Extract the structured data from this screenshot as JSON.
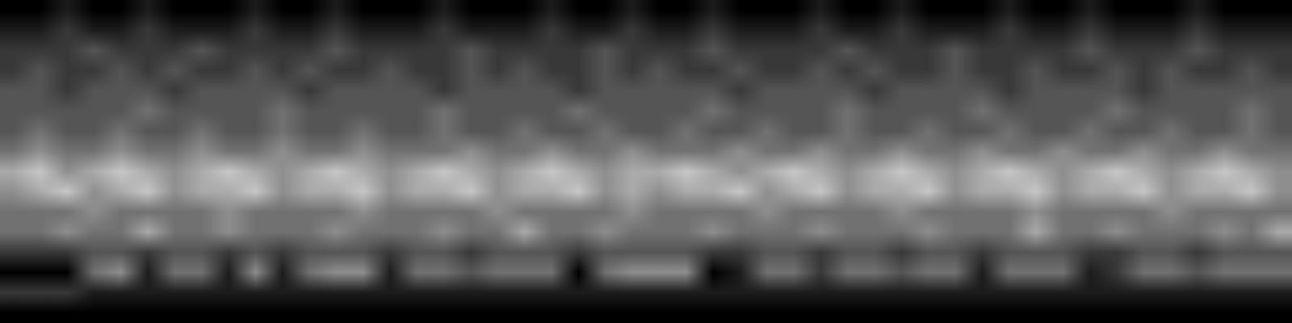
{
  "chart_data": {
    "type": "heatmap",
    "tick_labels": false,
    "color_range": [
      0,
      9
    ],
    "cells": [
      [
        0,
        0,
        1,
        0,
        0,
        1,
        0,
        0,
        0,
        1,
        0,
        0,
        1,
        0,
        0,
        0,
        1,
        0,
        0,
        0,
        1,
        0,
        0,
        1,
        0,
        0,
        1,
        0,
        0,
        0,
        1,
        0,
        0,
        1,
        0,
        0,
        0,
        1,
        0,
        0,
        1,
        0,
        0,
        0,
        1,
        0,
        0,
        0
      ],
      [
        1,
        1,
        2,
        1,
        1,
        2,
        1,
        1,
        1,
        2,
        1,
        1,
        2,
        1,
        1,
        1,
        2,
        1,
        1,
        1,
        2,
        1,
        1,
        2,
        1,
        1,
        2,
        1,
        1,
        1,
        2,
        1,
        1,
        2,
        1,
        1,
        1,
        2,
        1,
        1,
        2,
        1,
        1,
        1,
        2,
        1,
        1,
        1
      ],
      [
        2,
        2,
        2,
        3,
        2,
        2,
        2,
        3,
        2,
        2,
        2,
        2,
        3,
        2,
        2,
        2,
        2,
        3,
        2,
        2,
        2,
        2,
        3,
        2,
        2,
        2,
        3,
        2,
        2,
        2,
        2,
        3,
        2,
        2,
        2,
        3,
        2,
        2,
        2,
        2,
        3,
        2,
        2,
        2,
        3,
        2,
        2,
        2
      ],
      [
        2,
        3,
        2,
        2,
        3,
        2,
        3,
        2,
        2,
        3,
        2,
        3,
        2,
        2,
        3,
        2,
        2,
        3,
        2,
        3,
        2,
        2,
        3,
        2,
        3,
        2,
        2,
        3,
        2,
        2,
        3,
        2,
        3,
        2,
        2,
        3,
        2,
        2,
        3,
        2,
        2,
        3,
        2,
        3,
        2,
        2,
        3,
        2
      ],
      [
        3,
        3,
        2,
        3,
        3,
        3,
        2,
        3,
        3,
        3,
        3,
        2,
        3,
        3,
        3,
        3,
        2,
        3,
        3,
        3,
        3,
        2,
        3,
        3,
        3,
        3,
        3,
        2,
        3,
        3,
        3,
        3,
        2,
        3,
        3,
        3,
        3,
        2,
        3,
        3,
        3,
        3,
        2,
        3,
        3,
        3,
        3,
        3
      ],
      [
        3,
        3,
        3,
        3,
        3,
        4,
        3,
        3,
        3,
        3,
        4,
        3,
        3,
        3,
        3,
        3,
        4,
        3,
        3,
        3,
        3,
        4,
        3,
        3,
        3,
        3,
        4,
        3,
        3,
        3,
        3,
        4,
        3,
        3,
        3,
        3,
        4,
        3,
        3,
        3,
        3,
        4,
        3,
        3,
        3,
        3,
        4,
        3
      ],
      [
        3,
        4,
        3,
        3,
        4,
        3,
        3,
        4,
        3,
        3,
        4,
        3,
        3,
        4,
        3,
        3,
        4,
        3,
        3,
        4,
        3,
        3,
        4,
        3,
        3,
        4,
        3,
        3,
        4,
        3,
        3,
        4,
        3,
        3,
        4,
        3,
        3,
        4,
        3,
        3,
        4,
        3,
        3,
        4,
        3,
        3,
        4,
        3
      ],
      [
        4,
        5,
        4,
        4,
        5,
        4,
        4,
        5,
        4,
        4,
        5,
        4,
        4,
        5,
        4,
        4,
        4,
        5,
        4,
        4,
        5,
        4,
        4,
        5,
        4,
        4,
        4,
        5,
        4,
        4,
        5,
        4,
        4,
        5,
        4,
        4,
        5,
        4,
        4,
        5,
        4,
        4,
        5,
        4,
        4,
        5,
        4,
        4
      ],
      [
        6,
        7,
        5,
        6,
        7,
        6,
        5,
        6,
        7,
        6,
        5,
        6,
        7,
        6,
        5,
        6,
        7,
        6,
        5,
        6,
        7,
        6,
        5,
        6,
        6,
        7,
        6,
        5,
        6,
        7,
        6,
        5,
        6,
        7,
        6,
        5,
        6,
        7,
        6,
        5,
        6,
        7,
        6,
        5,
        6,
        7,
        6,
        5
      ],
      [
        5,
        6,
        7,
        5,
        6,
        7,
        5,
        6,
        6,
        7,
        5,
        6,
        6,
        7,
        5,
        6,
        6,
        7,
        5,
        6,
        6,
        7,
        5,
        6,
        5,
        6,
        6,
        7,
        5,
        6,
        7,
        5,
        6,
        6,
        7,
        5,
        6,
        6,
        7,
        5,
        6,
        6,
        7,
        5,
        6,
        6,
        7,
        5
      ],
      [
        4,
        4,
        4,
        5,
        4,
        4,
        4,
        4,
        5,
        4,
        4,
        4,
        4,
        5,
        4,
        4,
        4,
        4,
        5,
        4,
        4,
        4,
        4,
        5,
        4,
        4,
        4,
        4,
        5,
        4,
        4,
        4,
        4,
        5,
        4,
        4,
        4,
        4,
        5,
        4,
        4,
        4,
        4,
        5,
        4,
        4,
        4,
        4
      ],
      [
        4,
        4,
        5,
        4,
        4,
        6,
        4,
        4,
        5,
        4,
        4,
        4,
        5,
        4,
        4,
        4,
        5,
        4,
        4,
        6,
        4,
        4,
        5,
        4,
        4,
        4,
        5,
        4,
        4,
        4,
        5,
        4,
        4,
        4,
        5,
        4,
        4,
        4,
        6,
        4,
        4,
        5,
        4,
        4,
        4,
        5,
        4,
        6
      ],
      [
        2,
        2,
        2,
        3,
        3,
        2,
        3,
        3,
        2,
        3,
        2,
        3,
        3,
        3,
        2,
        3,
        3,
        2,
        3,
        3,
        3,
        2,
        3,
        3,
        3,
        3,
        2,
        2,
        3,
        3,
        2,
        3,
        3,
        2,
        3,
        3,
        2,
        3,
        3,
        3,
        2,
        2,
        3,
        3,
        2,
        3,
        3,
        3
      ],
      [
        0,
        0,
        0,
        4,
        5,
        1,
        4,
        4,
        1,
        5,
        1,
        4,
        5,
        5,
        1,
        4,
        4,
        3,
        4,
        4,
        4,
        0,
        4,
        5,
        5,
        5,
        0,
        1,
        4,
        4,
        2,
        4,
        4,
        3,
        4,
        4,
        1,
        4,
        4,
        4,
        1,
        2,
        4,
        4,
        3,
        4,
        4,
        4
      ],
      [
        2,
        2,
        2,
        1,
        1,
        1,
        1,
        1,
        1,
        1,
        1,
        1,
        1,
        1,
        1,
        1,
        1,
        1,
        1,
        1,
        1,
        1,
        1,
        1,
        1,
        1,
        1,
        1,
        1,
        1,
        1,
        1,
        1,
        1,
        1,
        1,
        1,
        1,
        1,
        1,
        1,
        1,
        1,
        1,
        1,
        1,
        1,
        1
      ],
      [
        0,
        0,
        0,
        0,
        0,
        0,
        0,
        0,
        0,
        0,
        0,
        0,
        0,
        0,
        0,
        0,
        0,
        0,
        0,
        0,
        0,
        0,
        0,
        0,
        0,
        0,
        0,
        0,
        0,
        0,
        0,
        0,
        0,
        0,
        0,
        0,
        0,
        0,
        0,
        0,
        0,
        0,
        0,
        0,
        0,
        0,
        0,
        0
      ]
    ]
  }
}
